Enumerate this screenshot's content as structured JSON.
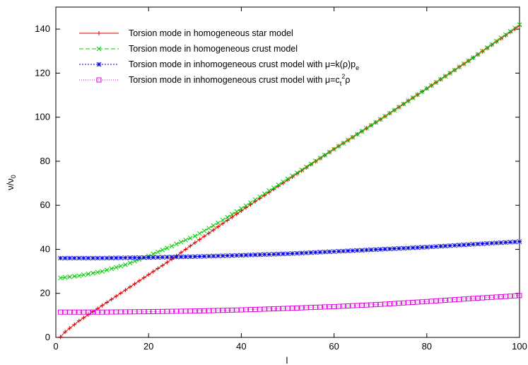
{
  "chart_data": {
    "type": "line",
    "title": "",
    "xlabel": "l",
    "ylabel": "ν/ν0",
    "ylabel_main": "ν/ν",
    "ylabel_sub": "0",
    "xlim": [
      0,
      100
    ],
    "ylim": [
      0,
      150
    ],
    "xticks": [
      0,
      20,
      40,
      60,
      80,
      100
    ],
    "yticks": [
      0,
      20,
      40,
      60,
      80,
      100,
      120,
      140
    ],
    "grid": false,
    "legend_position": "top-left",
    "series": [
      {
        "name": "Torsion mode in homogeneous star model",
        "color": "#e00000",
        "marker": "plus",
        "dash": "solid",
        "points": [
          [
            1,
            0.2
          ],
          [
            2,
            2.5
          ],
          [
            5,
            7.5
          ],
          [
            10,
            14.5
          ],
          [
            15,
            21.5
          ],
          [
            20,
            28.5
          ],
          [
            25,
            35.5
          ],
          [
            30,
            43
          ],
          [
            40,
            57.5
          ],
          [
            50,
            71.5
          ],
          [
            60,
            85.5
          ],
          [
            70,
            99
          ],
          [
            80,
            113
          ],
          [
            90,
            127
          ],
          [
            100,
            141.5
          ]
        ]
      },
      {
        "name": "Torsion mode in homogeneous crust model",
        "color": "#00cc00",
        "marker": "cross",
        "dash": "dashed",
        "points": [
          [
            1,
            27
          ],
          [
            5,
            28
          ],
          [
            10,
            30
          ],
          [
            15,
            33
          ],
          [
            20,
            37
          ],
          [
            25,
            41.5
          ],
          [
            30,
            46
          ],
          [
            35,
            52
          ],
          [
            40,
            58.5
          ],
          [
            50,
            72
          ],
          [
            60,
            85.5
          ],
          [
            70,
            99
          ],
          [
            80,
            113
          ],
          [
            90,
            127
          ],
          [
            100,
            142
          ]
        ]
      },
      {
        "name": "Torsion mode in inhomogeneous crust model with  μ=k(ρ)pe",
        "legend_main": "Torsion mode in inhomogeneous crust model with  μ=k(ρ)p",
        "legend_sub": "e",
        "color": "#0000e0",
        "marker": "star",
        "dash": "dotted",
        "points": [
          [
            1,
            36
          ],
          [
            10,
            36
          ],
          [
            20,
            36.3
          ],
          [
            30,
            36.7
          ],
          [
            40,
            37.3
          ],
          [
            50,
            38
          ],
          [
            60,
            39
          ],
          [
            70,
            40
          ],
          [
            80,
            41
          ],
          [
            90,
            42.3
          ],
          [
            100,
            43.5
          ]
        ]
      },
      {
        "name": "Torsion mode in inhomogeneous crust model with  μ=ct2ρ",
        "legend_main": "Torsion mode in inhomogeneous crust model with  μ=c",
        "legend_sub": "t",
        "legend_sup": "2",
        "legend_tail": "ρ",
        "color": "#e000e0",
        "marker": "square",
        "dash": "finedotted",
        "points": [
          [
            1,
            11.5
          ],
          [
            10,
            11.5
          ],
          [
            20,
            11.7
          ],
          [
            30,
            12
          ],
          [
            40,
            12.5
          ],
          [
            50,
            13.2
          ],
          [
            60,
            14
          ],
          [
            70,
            15
          ],
          [
            80,
            16.3
          ],
          [
            90,
            17.7
          ],
          [
            100,
            19
          ]
        ]
      }
    ]
  }
}
